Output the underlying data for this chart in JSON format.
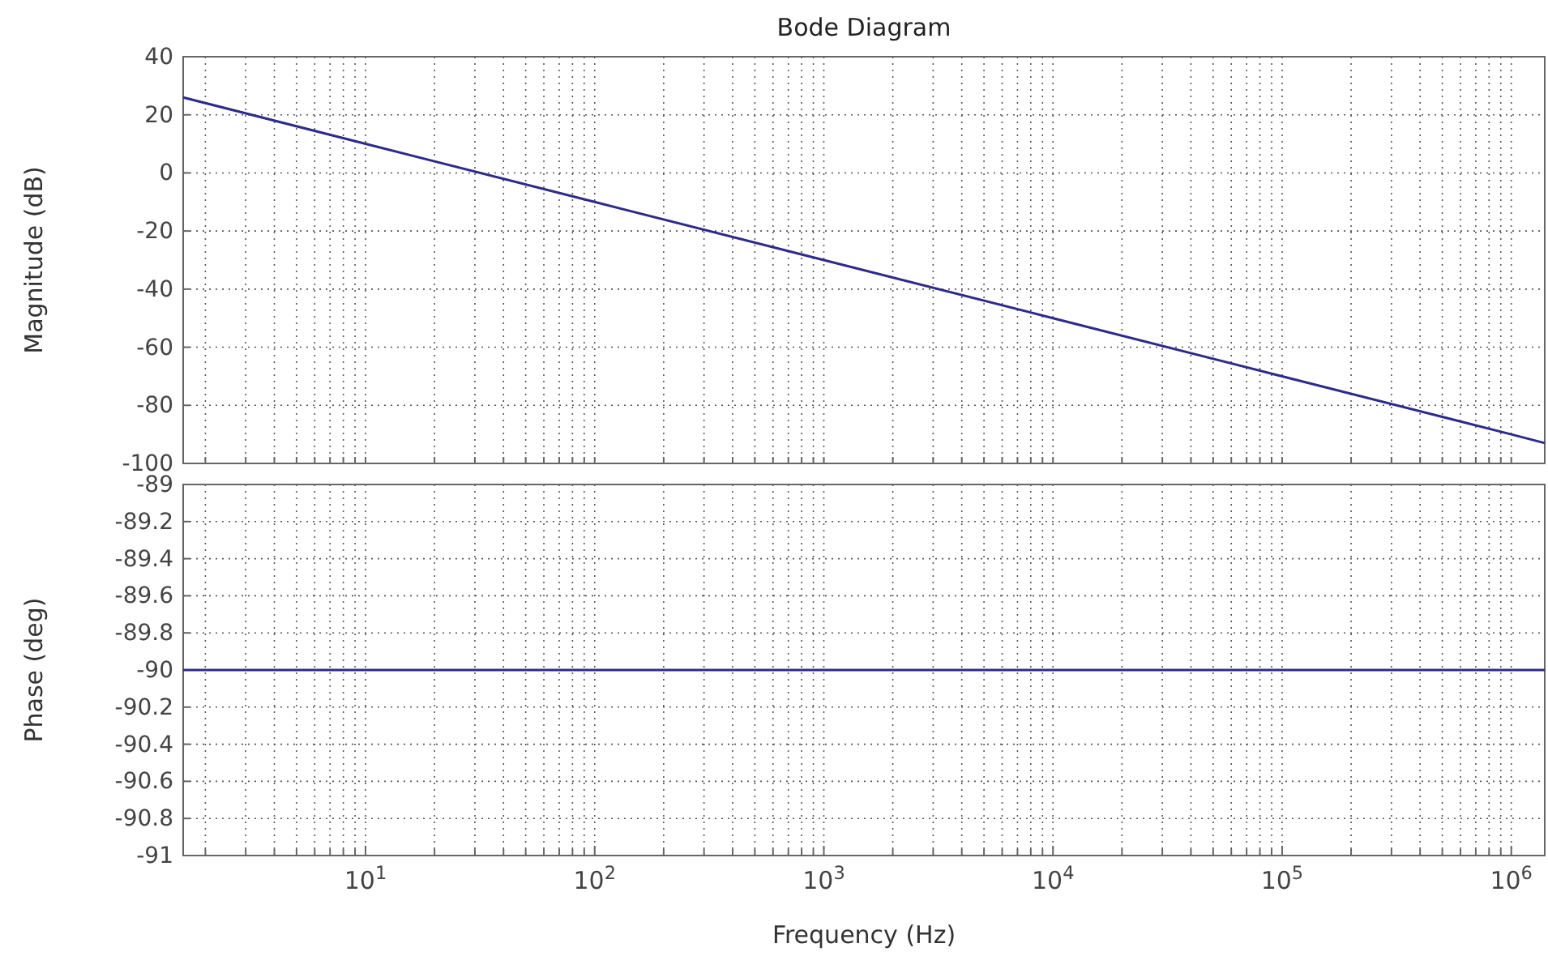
{
  "chart_data": [
    {
      "type": "line",
      "title": "Bode Diagram",
      "ylabel": "Magnitude (dB)",
      "log": "x",
      "grid": true,
      "tick_labels": "y",
      "xlim": [
        1.6,
        1400000
      ],
      "ylim": [
        -100,
        40
      ],
      "yticks": [
        -100,
        -80,
        -60,
        -40,
        -20,
        0,
        20,
        40
      ],
      "xticks": [
        {
          "value": 2,
          "label": null
        },
        {
          "value": 3,
          "label": null
        },
        {
          "value": 4,
          "label": null
        },
        {
          "value": 5,
          "label": null
        },
        {
          "value": 6,
          "label": null
        },
        {
          "value": 7,
          "label": null
        },
        {
          "value": 8,
          "label": null
        },
        {
          "value": 9,
          "label": null
        },
        {
          "value": 10,
          "label": null
        },
        {
          "value": 20,
          "label": null
        },
        {
          "value": 30,
          "label": null
        },
        {
          "value": 40,
          "label": null
        },
        {
          "value": 50,
          "label": null
        },
        {
          "value": 60,
          "label": null
        },
        {
          "value": 70,
          "label": null
        },
        {
          "value": 80,
          "label": null
        },
        {
          "value": 90,
          "label": null
        },
        {
          "value": 100,
          "label": null
        },
        {
          "value": 200,
          "label": null
        },
        {
          "value": 300,
          "label": null
        },
        {
          "value": 400,
          "label": null
        },
        {
          "value": 500,
          "label": null
        },
        {
          "value": 600,
          "label": null
        },
        {
          "value": 700,
          "label": null
        },
        {
          "value": 800,
          "label": null
        },
        {
          "value": 900,
          "label": null
        },
        {
          "value": 1000,
          "label": null
        },
        {
          "value": 2000,
          "label": null
        },
        {
          "value": 3000,
          "label": null
        },
        {
          "value": 4000,
          "label": null
        },
        {
          "value": 5000,
          "label": null
        },
        {
          "value": 6000,
          "label": null
        },
        {
          "value": 7000,
          "label": null
        },
        {
          "value": 8000,
          "label": null
        },
        {
          "value": 9000,
          "label": null
        },
        {
          "value": 10000,
          "label": null
        },
        {
          "value": 20000,
          "label": null
        },
        {
          "value": 30000,
          "label": null
        },
        {
          "value": 40000,
          "label": null
        },
        {
          "value": 50000,
          "label": null
        },
        {
          "value": 60000,
          "label": null
        },
        {
          "value": 70000,
          "label": null
        },
        {
          "value": 80000,
          "label": null
        },
        {
          "value": 90000,
          "label": null
        },
        {
          "value": 100000,
          "label": null
        },
        {
          "value": 200000,
          "label": null
        },
        {
          "value": 300000,
          "label": null
        },
        {
          "value": 400000,
          "label": null
        },
        {
          "value": 500000,
          "label": null
        },
        {
          "value": 600000,
          "label": null
        },
        {
          "value": 700000,
          "label": null
        },
        {
          "value": 800000,
          "label": null
        },
        {
          "value": 900000,
          "label": null
        },
        {
          "value": 1000000,
          "label": null
        }
      ],
      "x": [
        1.6,
        10,
        100,
        1000,
        10000,
        100000,
        1000000,
        1400000
      ],
      "series": [
        {
          "color": "#2e2a8c",
          "values": [
            26,
            10,
            -10,
            -30,
            -50,
            -70,
            -90,
            -93
          ]
        }
      ]
    },
    {
      "type": "line",
      "xlabel": "Frequency  (Hz)",
      "ylabel": "Phase (deg)",
      "log": "x",
      "grid": true,
      "xlim": [
        1.6,
        1400000
      ],
      "ylim": [
        -91,
        -89
      ],
      "yticks": [
        -91,
        -90.8,
        -90.6,
        -90.4,
        -90.2,
        -90,
        -89.8,
        -89.6,
        -89.4,
        -89.2,
        -89
      ],
      "xticks": [
        {
          "value": 2,
          "label": null
        },
        {
          "value": 3,
          "label": null
        },
        {
          "value": 4,
          "label": null
        },
        {
          "value": 5,
          "label": null
        },
        {
          "value": 6,
          "label": null
        },
        {
          "value": 7,
          "label": null
        },
        {
          "value": 8,
          "label": null
        },
        {
          "value": 9,
          "label": null
        },
        {
          "value": 10,
          "label": "10$^{1}$"
        },
        {
          "value": 20,
          "label": null
        },
        {
          "value": 30,
          "label": null
        },
        {
          "value": 40,
          "label": null
        },
        {
          "value": 50,
          "label": null
        },
        {
          "value": 60,
          "label": null
        },
        {
          "value": 70,
          "label": null
        },
        {
          "value": 80,
          "label": null
        },
        {
          "value": 90,
          "label": null
        },
        {
          "value": 100,
          "label": "10$^{2}$"
        },
        {
          "value": 200,
          "label": null
        },
        {
          "value": 300,
          "label": null
        },
        {
          "value": 400,
          "label": null
        },
        {
          "value": 500,
          "label": null
        },
        {
          "value": 600,
          "label": null
        },
        {
          "value": 700,
          "label": null
        },
        {
          "value": 800,
          "label": null
        },
        {
          "value": 900,
          "label": null
        },
        {
          "value": 1000,
          "label": "10$^{3}$"
        },
        {
          "value": 2000,
          "label": null
        },
        {
          "value": 3000,
          "label": null
        },
        {
          "value": 4000,
          "label": null
        },
        {
          "value": 5000,
          "label": null
        },
        {
          "value": 6000,
          "label": null
        },
        {
          "value": 7000,
          "label": null
        },
        {
          "value": 8000,
          "label": null
        },
        {
          "value": 9000,
          "label": null
        },
        {
          "value": 10000,
          "label": "10$^{4}$"
        },
        {
          "value": 20000,
          "label": null
        },
        {
          "value": 30000,
          "label": null
        },
        {
          "value": 40000,
          "label": null
        },
        {
          "value": 50000,
          "label": null
        },
        {
          "value": 60000,
          "label": null
        },
        {
          "value": 70000,
          "label": null
        },
        {
          "value": 80000,
          "label": null
        },
        {
          "value": 90000,
          "label": null
        },
        {
          "value": 100000,
          "label": "10$^{5}$"
        },
        {
          "value": 200000,
          "label": null
        },
        {
          "value": 300000,
          "label": null
        },
        {
          "value": 400000,
          "label": null
        },
        {
          "value": 500000,
          "label": null
        },
        {
          "value": 600000,
          "label": null
        },
        {
          "value": 700000,
          "label": null
        },
        {
          "value": 800000,
          "label": null
        },
        {
          "value": 900000,
          "label": null
        },
        {
          "value": 1000000,
          "label": "10$^{6}$"
        }
      ],
      "x": [
        1.6,
        1400000
      ],
      "series": [
        {
          "color": "#2e2a8c",
          "values": [
            -90,
            -90
          ]
        }
      ]
    }
  ]
}
